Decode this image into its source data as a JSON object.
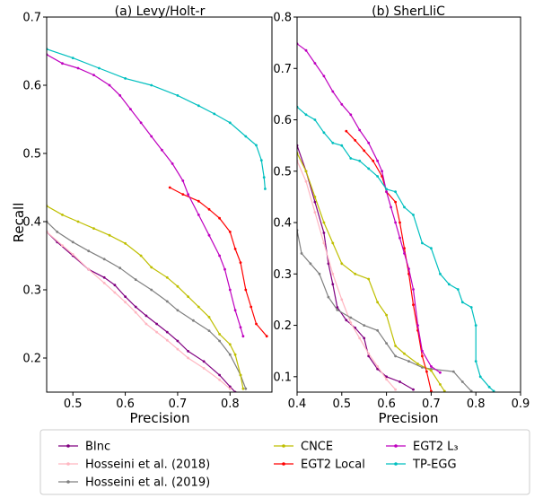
{
  "figure": {
    "ylabel_shared": "Recall"
  },
  "legend": {
    "entries": [
      {
        "name": "BInc",
        "color": "#800080"
      },
      {
        "name": "Hosseini et al. (2018)",
        "color": "#ffb6c1"
      },
      {
        "name": "Hosseini et al. (2019)",
        "color": "#808080"
      },
      {
        "name": "CNCE",
        "color": "#bfbf00"
      },
      {
        "name": "EGT2 Local",
        "color": "#ff0000"
      },
      {
        "name": "EGT2 L₃",
        "color": "#bf00bf"
      },
      {
        "name": "TP-EGG",
        "color": "#00bfbf"
      }
    ]
  },
  "chart_data": [
    {
      "type": "line",
      "title": "(a) Levy/Holt-r",
      "xlabel": "Precision",
      "ylabel": "Recall",
      "xlim": [
        0.45,
        0.88
      ],
      "ylim": [
        0.15,
        0.7
      ],
      "xticks": [
        "0.5",
        "0.6",
        "0.7",
        "0.8"
      ],
      "xtick_values": [
        0.5,
        0.6,
        0.7,
        0.8
      ],
      "yticks": [
        "0.2",
        "0.3",
        "0.4",
        "0.5",
        "0.6",
        "0.7"
      ],
      "ytick_values": [
        0.2,
        0.3,
        0.4,
        0.5,
        0.6,
        0.7
      ],
      "grid": false,
      "series": [
        {
          "name": "BInc",
          "color": "#800080",
          "points": [
            [
              0.45,
              0.385
            ],
            [
              0.47,
              0.37
            ],
            [
              0.5,
              0.35
            ],
            [
              0.53,
              0.33
            ],
            [
              0.56,
              0.318
            ],
            [
              0.58,
              0.307
            ],
            [
              0.6,
              0.29
            ],
            [
              0.62,
              0.275
            ],
            [
              0.64,
              0.262
            ],
            [
              0.66,
              0.25
            ],
            [
              0.68,
              0.238
            ],
            [
              0.7,
              0.225
            ],
            [
              0.72,
              0.21
            ],
            [
              0.75,
              0.195
            ],
            [
              0.78,
              0.175
            ],
            [
              0.8,
              0.158
            ],
            [
              0.81,
              0.15
            ]
          ]
        },
        {
          "name": "Hosseini et al. (2018)",
          "color": "#ffb6c1",
          "points": [
            [
              0.45,
              0.385
            ],
            [
              0.48,
              0.365
            ],
            [
              0.5,
              0.352
            ],
            [
              0.53,
              0.33
            ],
            [
              0.56,
              0.31
            ],
            [
              0.58,
              0.296
            ],
            [
              0.6,
              0.282
            ],
            [
              0.62,
              0.267
            ],
            [
              0.64,
              0.25
            ],
            [
              0.66,
              0.238
            ],
            [
              0.68,
              0.226
            ],
            [
              0.7,
              0.213
            ],
            [
              0.72,
              0.2
            ],
            [
              0.75,
              0.185
            ],
            [
              0.78,
              0.168
            ],
            [
              0.8,
              0.155
            ]
          ]
        },
        {
          "name": "Hosseini et al. (2019)",
          "color": "#808080",
          "points": [
            [
              0.45,
              0.4
            ],
            [
              0.47,
              0.385
            ],
            [
              0.5,
              0.37
            ],
            [
              0.53,
              0.357
            ],
            [
              0.56,
              0.345
            ],
            [
              0.59,
              0.332
            ],
            [
              0.62,
              0.315
            ],
            [
              0.65,
              0.3
            ],
            [
              0.68,
              0.283
            ],
            [
              0.7,
              0.27
            ],
            [
              0.73,
              0.255
            ],
            [
              0.76,
              0.24
            ],
            [
              0.78,
              0.225
            ],
            [
              0.8,
              0.205
            ],
            [
              0.82,
              0.175
            ],
            [
              0.83,
              0.155
            ]
          ]
        },
        {
          "name": "CNCE",
          "color": "#bfbf00",
          "points": [
            [
              0.45,
              0.423
            ],
            [
              0.48,
              0.41
            ],
            [
              0.51,
              0.4
            ],
            [
              0.54,
              0.39
            ],
            [
              0.57,
              0.38
            ],
            [
              0.6,
              0.368
            ],
            [
              0.63,
              0.35
            ],
            [
              0.65,
              0.333
            ],
            [
              0.68,
              0.318
            ],
            [
              0.7,
              0.305
            ],
            [
              0.72,
              0.29
            ],
            [
              0.74,
              0.275
            ],
            [
              0.76,
              0.26
            ],
            [
              0.78,
              0.235
            ],
            [
              0.8,
              0.22
            ],
            [
              0.81,
              0.205
            ],
            [
              0.82,
              0.175
            ],
            [
              0.825,
              0.155
            ]
          ]
        },
        {
          "name": "EGT2 Local",
          "color": "#ff0000",
          "points": [
            [
              0.685,
              0.45
            ],
            [
              0.71,
              0.44
            ],
            [
              0.74,
              0.43
            ],
            [
              0.76,
              0.418
            ],
            [
              0.78,
              0.405
            ],
            [
              0.8,
              0.385
            ],
            [
              0.81,
              0.36
            ],
            [
              0.82,
              0.34
            ],
            [
              0.83,
              0.3
            ],
            [
              0.84,
              0.275
            ],
            [
              0.85,
              0.25
            ],
            [
              0.87,
              0.232
            ]
          ]
        },
        {
          "name": "EGT2 L₃",
          "color": "#bf00bf",
          "points": [
            [
              0.45,
              0.645
            ],
            [
              0.48,
              0.632
            ],
            [
              0.51,
              0.625
            ],
            [
              0.54,
              0.615
            ],
            [
              0.57,
              0.6
            ],
            [
              0.59,
              0.585
            ],
            [
              0.61,
              0.565
            ],
            [
              0.63,
              0.545
            ],
            [
              0.65,
              0.525
            ],
            [
              0.67,
              0.505
            ],
            [
              0.69,
              0.485
            ],
            [
              0.71,
              0.46
            ],
            [
              0.72,
              0.44
            ],
            [
              0.74,
              0.41
            ],
            [
              0.76,
              0.38
            ],
            [
              0.78,
              0.35
            ],
            [
              0.79,
              0.33
            ],
            [
              0.8,
              0.3
            ],
            [
              0.81,
              0.27
            ],
            [
              0.82,
              0.245
            ],
            [
              0.825,
              0.232
            ]
          ]
        },
        {
          "name": "TP-EGG",
          "color": "#00bfbf",
          "points": [
            [
              0.45,
              0.653
            ],
            [
              0.5,
              0.64
            ],
            [
              0.55,
              0.625
            ],
            [
              0.6,
              0.61
            ],
            [
              0.65,
              0.6
            ],
            [
              0.7,
              0.585
            ],
            [
              0.74,
              0.57
            ],
            [
              0.77,
              0.558
            ],
            [
              0.8,
              0.545
            ],
            [
              0.83,
              0.525
            ],
            [
              0.85,
              0.512
            ],
            [
              0.86,
              0.49
            ],
            [
              0.865,
              0.465
            ],
            [
              0.867,
              0.448
            ]
          ]
        }
      ]
    },
    {
      "type": "line",
      "title": "(b) SherLliC",
      "xlabel": "Precision",
      "ylabel": "",
      "xlim": [
        0.4,
        0.9
      ],
      "ylim": [
        0.07,
        0.8
      ],
      "xticks": [
        "0.4",
        "0.5",
        "0.6",
        "0.7",
        "0.8",
        "0.9"
      ],
      "xtick_values": [
        0.4,
        0.5,
        0.6,
        0.7,
        0.8,
        0.9
      ],
      "yticks": [
        "0.1",
        "0.2",
        "0.3",
        "0.4",
        "0.5",
        "0.6",
        "0.7",
        "0.8"
      ],
      "ytick_values": [
        0.1,
        0.2,
        0.3,
        0.4,
        0.5,
        0.6,
        0.7,
        0.8
      ],
      "grid": false,
      "series": [
        {
          "name": "BInc",
          "color": "#800080",
          "points": [
            [
              0.4,
              0.55
            ],
            [
              0.42,
              0.5
            ],
            [
              0.44,
              0.44
            ],
            [
              0.46,
              0.38
            ],
            [
              0.47,
              0.32
            ],
            [
              0.48,
              0.28
            ],
            [
              0.49,
              0.235
            ],
            [
              0.51,
              0.21
            ],
            [
              0.53,
              0.195
            ],
            [
              0.55,
              0.175
            ],
            [
              0.56,
              0.14
            ],
            [
              0.58,
              0.115
            ],
            [
              0.6,
              0.1
            ],
            [
              0.63,
              0.09
            ],
            [
              0.66,
              0.075
            ]
          ]
        },
        {
          "name": "Hosseini et al. (2018)",
          "color": "#ffb6c1",
          "points": [
            [
              0.4,
              0.52
            ],
            [
              0.42,
              0.48
            ],
            [
              0.44,
              0.42
            ],
            [
              0.46,
              0.36
            ],
            [
              0.48,
              0.3
            ],
            [
              0.5,
              0.25
            ],
            [
              0.52,
              0.205
            ],
            [
              0.54,
              0.175
            ],
            [
              0.56,
              0.145
            ],
            [
              0.58,
              0.12
            ],
            [
              0.6,
              0.095
            ],
            [
              0.62,
              0.075
            ]
          ]
        },
        {
          "name": "Hosseini et al. (2019)",
          "color": "#808080",
          "points": [
            [
              0.4,
              0.385
            ],
            [
              0.41,
              0.34
            ],
            [
              0.43,
              0.32
            ],
            [
              0.45,
              0.3
            ],
            [
              0.47,
              0.255
            ],
            [
              0.49,
              0.23
            ],
            [
              0.52,
              0.215
            ],
            [
              0.55,
              0.2
            ],
            [
              0.58,
              0.19
            ],
            [
              0.6,
              0.165
            ],
            [
              0.62,
              0.14
            ],
            [
              0.65,
              0.13
            ],
            [
              0.68,
              0.118
            ],
            [
              0.7,
              0.115
            ],
            [
              0.75,
              0.11
            ],
            [
              0.77,
              0.09
            ],
            [
              0.79,
              0.072
            ]
          ]
        },
        {
          "name": "CNCE",
          "color": "#bfbf00",
          "points": [
            [
              0.4,
              0.535
            ],
            [
              0.42,
              0.5
            ],
            [
              0.44,
              0.45
            ],
            [
              0.46,
              0.4
            ],
            [
              0.48,
              0.36
            ],
            [
              0.5,
              0.32
            ],
            [
              0.53,
              0.3
            ],
            [
              0.56,
              0.29
            ],
            [
              0.58,
              0.245
            ],
            [
              0.6,
              0.22
            ],
            [
              0.62,
              0.16
            ],
            [
              0.64,
              0.145
            ],
            [
              0.67,
              0.125
            ],
            [
              0.7,
              0.112
            ],
            [
              0.72,
              0.085
            ],
            [
              0.73,
              0.072
            ]
          ]
        },
        {
          "name": "EGT2 Local",
          "color": "#ff0000",
          "points": [
            [
              0.51,
              0.578
            ],
            [
              0.53,
              0.56
            ],
            [
              0.55,
              0.54
            ],
            [
              0.57,
              0.52
            ],
            [
              0.59,
              0.49
            ],
            [
              0.6,
              0.46
            ],
            [
              0.62,
              0.44
            ],
            [
              0.63,
              0.4
            ],
            [
              0.64,
              0.35
            ],
            [
              0.65,
              0.3
            ],
            [
              0.66,
              0.24
            ],
            [
              0.67,
              0.19
            ],
            [
              0.68,
              0.14
            ],
            [
              0.69,
              0.11
            ],
            [
              0.7,
              0.072
            ]
          ]
        },
        {
          "name": "EGT2 L₃",
          "color": "#bf00bf",
          "points": [
            [
              0.4,
              0.748
            ],
            [
              0.42,
              0.735
            ],
            [
              0.44,
              0.71
            ],
            [
              0.46,
              0.685
            ],
            [
              0.48,
              0.655
            ],
            [
              0.5,
              0.63
            ],
            [
              0.52,
              0.61
            ],
            [
              0.54,
              0.58
            ],
            [
              0.56,
              0.555
            ],
            [
              0.58,
              0.52
            ],
            [
              0.59,
              0.5
            ],
            [
              0.6,
              0.46
            ],
            [
              0.61,
              0.43
            ],
            [
              0.62,
              0.4
            ],
            [
              0.63,
              0.37
            ],
            [
              0.64,
              0.34
            ],
            [
              0.65,
              0.31
            ],
            [
              0.66,
              0.27
            ],
            [
              0.67,
              0.2
            ],
            [
              0.68,
              0.15
            ],
            [
              0.7,
              0.12
            ],
            [
              0.72,
              0.108
            ]
          ]
        },
        {
          "name": "TP-EGG",
          "color": "#00bfbf",
          "points": [
            [
              0.4,
              0.625
            ],
            [
              0.42,
              0.61
            ],
            [
              0.44,
              0.6
            ],
            [
              0.46,
              0.575
            ],
            [
              0.48,
              0.555
            ],
            [
              0.5,
              0.55
            ],
            [
              0.52,
              0.525
            ],
            [
              0.54,
              0.52
            ],
            [
              0.56,
              0.505
            ],
            [
              0.58,
              0.49
            ],
            [
              0.6,
              0.465
            ],
            [
              0.62,
              0.46
            ],
            [
              0.64,
              0.43
            ],
            [
              0.66,
              0.415
            ],
            [
              0.68,
              0.36
            ],
            [
              0.7,
              0.35
            ],
            [
              0.72,
              0.3
            ],
            [
              0.74,
              0.28
            ],
            [
              0.76,
              0.27
            ],
            [
              0.77,
              0.245
            ],
            [
              0.79,
              0.235
            ],
            [
              0.8,
              0.2
            ],
            [
              0.8,
              0.13
            ],
            [
              0.81,
              0.1
            ],
            [
              0.83,
              0.08
            ],
            [
              0.84,
              0.072
            ]
          ]
        }
      ]
    }
  ]
}
